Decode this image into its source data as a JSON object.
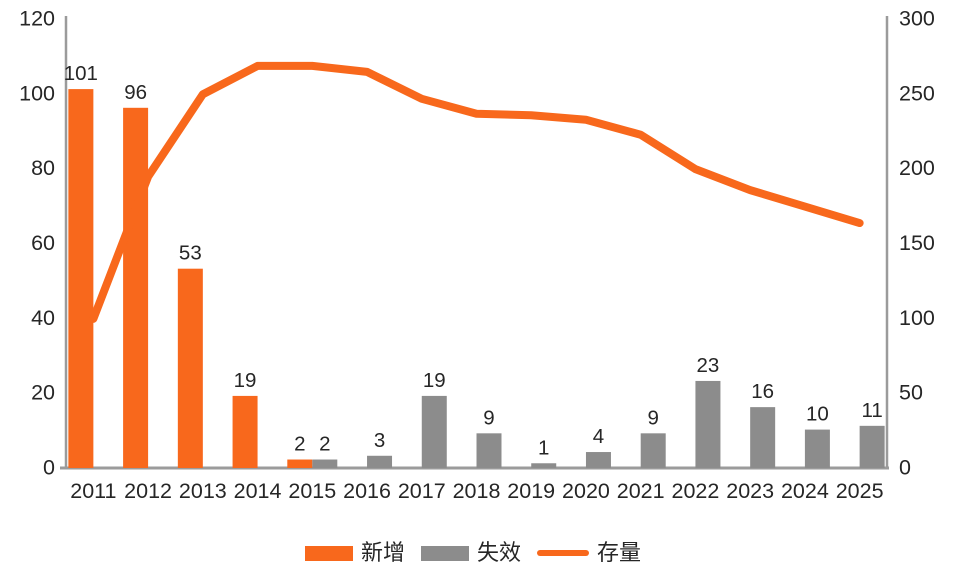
{
  "chart_data": {
    "type": "bar",
    "subtype": "combo-bar-line-dual-axis",
    "title": "",
    "categories": [
      "2011",
      "2012",
      "2013",
      "2014",
      "2015",
      "2016",
      "2017",
      "2018",
      "2019",
      "2020",
      "2021",
      "2022",
      "2023",
      "2024",
      "2025"
    ],
    "series": [
      {
        "name": "新增",
        "type": "bar",
        "axis": "left",
        "color": "#F8681C",
        "values": [
          101,
          96,
          53,
          19,
          2,
          null,
          null,
          null,
          null,
          null,
          null,
          null,
          null,
          null,
          null
        ]
      },
      {
        "name": "失效",
        "type": "bar",
        "axis": "left",
        "color": "#8C8C8C",
        "values": [
          null,
          null,
          null,
          null,
          2,
          3,
          19,
          9,
          1,
          4,
          9,
          23,
          16,
          10,
          11
        ]
      },
      {
        "name": "存量",
        "type": "line",
        "axis": "right",
        "color": "#F8681C",
        "values": [
          99,
          194,
          249,
          268,
          268,
          264,
          246,
          236,
          235,
          232,
          222,
          199,
          185,
          174,
          163
        ]
      }
    ],
    "left_axis": {
      "min": 0,
      "max": 120,
      "step": 20,
      "ticks": [
        "0",
        "20",
        "40",
        "60",
        "80",
        "100",
        "120"
      ]
    },
    "right_axis": {
      "min": 0,
      "max": 300,
      "step": 50,
      "ticks": [
        "0",
        "50",
        "100",
        "150",
        "200",
        "250",
        "300"
      ]
    },
    "xlabel": "",
    "ylabel": "",
    "grid": false,
    "data_labels": "bars-only",
    "legend_position": "bottom"
  },
  "colors": {
    "accent_orange": "#F8681C",
    "bar_gray": "#8C8C8C",
    "axis_line": "#9B9B9B",
    "text": "#262626",
    "background": "#FFFFFF"
  }
}
